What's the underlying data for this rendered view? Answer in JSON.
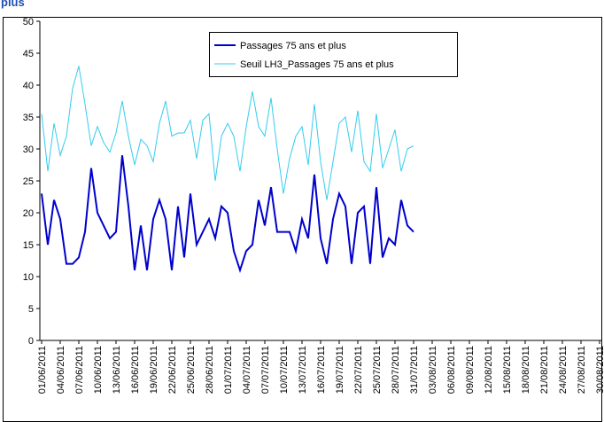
{
  "chart_data": {
    "type": "line",
    "title": "plus",
    "categories": [
      "01/06/2011",
      null,
      null,
      "04/06/2011",
      null,
      null,
      "07/06/2011",
      null,
      null,
      "10/06/2011",
      null,
      null,
      "13/06/2011",
      null,
      null,
      "16/06/2011",
      null,
      null,
      "19/06/2011",
      null,
      null,
      "22/06/2011",
      null,
      null,
      "25/06/2011",
      null,
      null,
      "28/06/2011",
      null,
      null,
      "01/07/2011",
      null,
      null,
      "04/07/2011",
      null,
      null,
      "07/07/2011",
      null,
      null,
      "10/07/2011",
      null,
      null,
      "13/07/2011",
      null,
      null,
      "16/07/2011",
      null,
      null,
      "19/07/2011",
      null,
      null,
      "22/07/2011",
      null,
      null,
      "25/07/2011",
      null,
      null,
      "28/07/2011",
      null,
      null,
      "31/07/2011",
      null,
      null,
      "03/08/2011",
      null,
      null,
      "06/08/2011",
      null,
      null,
      "09/08/2011",
      null,
      null,
      "12/08/2011",
      null,
      null,
      "15/08/2011",
      null,
      null,
      "18/08/2011",
      null,
      null,
      "21/08/2011",
      null,
      null,
      "24/08/2011",
      null,
      null,
      "27/08/2011",
      null,
      null,
      "30/08/2011"
    ],
    "series": [
      {
        "name": "Passages 75 ans et plus",
        "color": "#0000cc",
        "values": [
          23,
          15,
          22,
          19,
          12,
          12,
          13,
          17,
          27,
          20,
          18,
          16,
          17,
          29,
          21,
          11,
          18,
          11,
          19,
          22,
          19,
          11,
          21,
          13,
          23,
          15,
          17,
          19,
          16,
          21,
          20,
          14,
          11,
          14,
          15,
          22,
          18,
          24,
          17,
          17,
          17,
          14,
          19,
          16,
          26,
          16,
          12,
          19,
          23,
          21,
          12,
          20,
          21,
          12,
          24,
          13,
          16,
          15,
          22,
          18,
          17,
          null,
          null,
          null,
          null,
          null,
          null,
          null,
          null,
          null,
          null,
          null,
          null,
          null,
          null,
          null,
          null,
          null,
          null,
          null,
          null,
          null,
          null,
          null,
          null,
          null,
          null,
          null,
          null,
          null,
          null
        ]
      },
      {
        "name": "Seuil LH3_Passages 75 ans et plus",
        "color": "#33ccee",
        "values": [
          35.5,
          26.5,
          34,
          29,
          32,
          39.5,
          43,
          37,
          30.5,
          33.5,
          31,
          29.5,
          32.5,
          37.5,
          32,
          27.5,
          31.5,
          30.5,
          28,
          34,
          37.5,
          32,
          32.5,
          32.5,
          34.5,
          28.5,
          34.5,
          35.5,
          25,
          32,
          34,
          32,
          26.5,
          33.5,
          39,
          33.5,
          32,
          38,
          30,
          23,
          28.5,
          32,
          33.5,
          27.5,
          37,
          28,
          22,
          28,
          34,
          35,
          29.5,
          36,
          28,
          26.5,
          35.5,
          27,
          30,
          33,
          26.5,
          30,
          30.5,
          null,
          null,
          null,
          null,
          null,
          null,
          null,
          null,
          null,
          null,
          null,
          null,
          null,
          null,
          null,
          null,
          null,
          null,
          null,
          null,
          null,
          null,
          null,
          null,
          null,
          null,
          null,
          null,
          null,
          null
        ]
      }
    ],
    "ylim": [
      0,
      50
    ],
    "yticks": [
      0,
      5,
      10,
      15,
      20,
      25,
      30,
      35,
      40,
      45,
      50
    ],
    "grid": false
  }
}
